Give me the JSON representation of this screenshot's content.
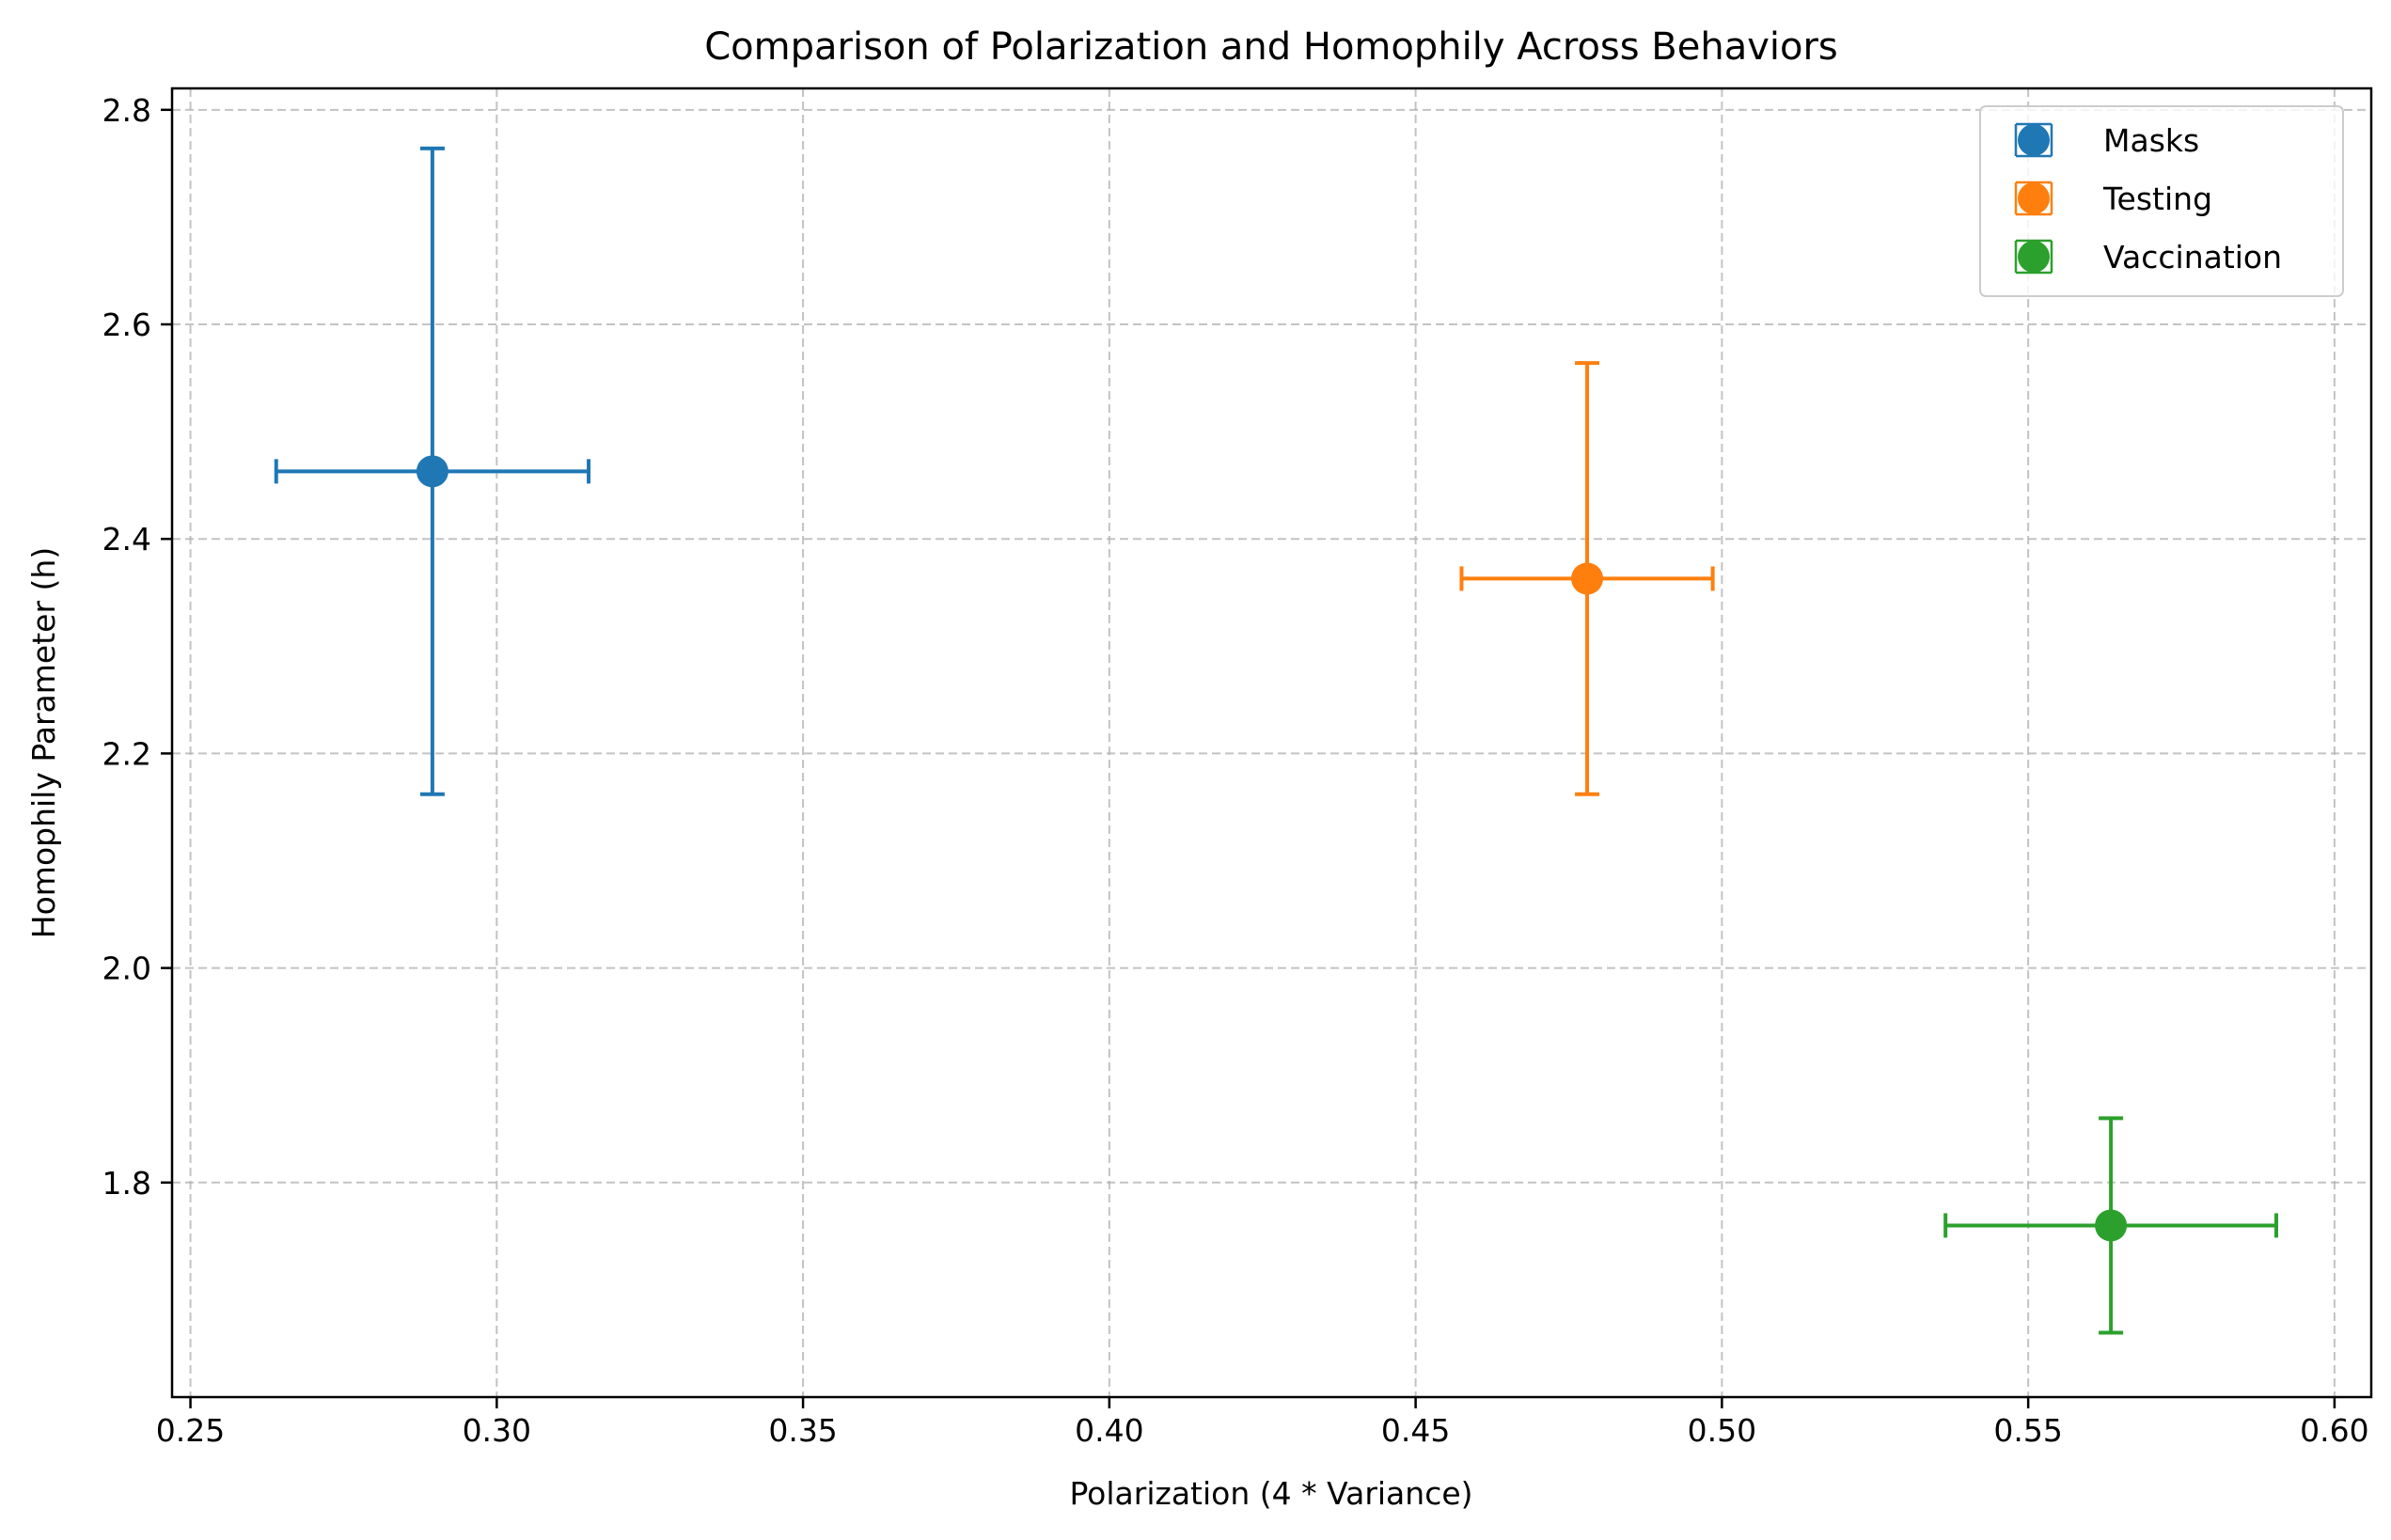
{
  "chart_data": {
    "type": "scatter",
    "title": "Comparison of Polarization and Homophily Across Behaviors",
    "xlabel": "Polarization (4 * Variance)",
    "ylabel": "Homophily Parameter (h)",
    "xlim": [
      0.247,
      0.606
    ],
    "ylim": [
      1.6,
      2.82
    ],
    "xticks": [
      0.25,
      0.3,
      0.35,
      0.4,
      0.45,
      0.5,
      0.55,
      0.6
    ],
    "xtick_labels": [
      "0.25",
      "0.30",
      "0.35",
      "0.40",
      "0.45",
      "0.50",
      "0.55",
      "0.60"
    ],
    "yticks": [
      1.8,
      2.0,
      2.2,
      2.4,
      2.6,
      2.8
    ],
    "ytick_labels": [
      "1.8",
      "2.0",
      "2.2",
      "2.4",
      "2.6",
      "2.8"
    ],
    "grid": true,
    "legend_position": "top-right",
    "series": [
      {
        "name": "Masks",
        "color": "#1f77b4",
        "x": 0.2895,
        "y": 2.463,
        "xerr": 0.0255,
        "yerr": 0.301
      },
      {
        "name": "Testing",
        "color": "#ff7f0e",
        "x": 0.478,
        "y": 2.363,
        "xerr": 0.0205,
        "yerr": 0.201
      },
      {
        "name": "Vaccination",
        "color": "#2ca02c",
        "x": 0.5635,
        "y": 1.76,
        "xerr": 0.027,
        "yerr": 0.1
      }
    ]
  }
}
